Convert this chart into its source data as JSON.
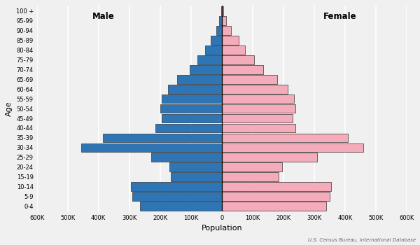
{
  "age_groups": [
    "0-4",
    "5-9",
    "10-14",
    "15-19",
    "20-24",
    "25-29",
    "30-34",
    "35-39",
    "40-44",
    "45-49",
    "50-54",
    "55-59",
    "60-64",
    "65-69",
    "70-74",
    "75-79",
    "80-84",
    "85-89",
    "90-94",
    "95-99",
    "100 +"
  ],
  "male": [
    265000,
    290000,
    295000,
    165000,
    170000,
    230000,
    455000,
    385000,
    215000,
    195000,
    200000,
    195000,
    175000,
    145000,
    105000,
    80000,
    55000,
    35000,
    18000,
    8000,
    2000
  ],
  "female": [
    340000,
    350000,
    355000,
    185000,
    195000,
    310000,
    460000,
    410000,
    240000,
    230000,
    240000,
    235000,
    215000,
    180000,
    135000,
    105000,
    75000,
    55000,
    30000,
    14000,
    5000
  ],
  "male_color": "#2E75B6",
  "female_color": "#F4ACBA",
  "bar_edge_color": "#333333",
  "bar_edge_width": 0.5,
  "xlim": 600000,
  "xticks": [
    -600000,
    -500000,
    -400000,
    -300000,
    -200000,
    -100000,
    0,
    100000,
    200000,
    300000,
    400000,
    500000,
    600000
  ],
  "xtick_labels": [
    "600K",
    "500K",
    "400K",
    "300K",
    "200K",
    "100K",
    "0",
    "100K",
    "200K",
    "300K",
    "400K",
    "500K",
    "600K"
  ],
  "xlabel": "Population",
  "ylabel": "Age",
  "male_label": "Male",
  "female_label": "Female",
  "source_text": "U.S. Census Bureau, International Database",
  "bg_color": "#f0f0f0",
  "grid_color": "#ffffff"
}
